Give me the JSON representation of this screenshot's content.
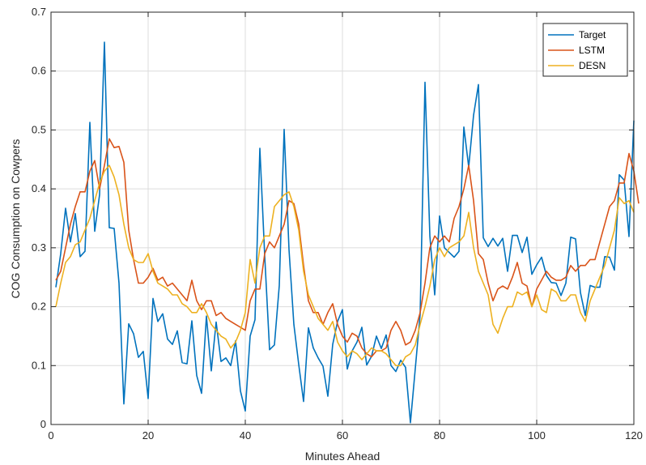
{
  "chart_data": {
    "type": "line",
    "title": "",
    "xlabel": "Minutes Ahead",
    "ylabel": "COG Consumption on Cowpers",
    "xlim": [
      0,
      120
    ],
    "ylim": [
      0,
      0.7
    ],
    "xticks": [
      0,
      20,
      40,
      60,
      80,
      100,
      120
    ],
    "yticks": [
      0,
      0.1,
      0.2,
      0.3,
      0.4,
      0.5,
      0.6,
      0.7
    ],
    "xtick_labels": [
      "0",
      "20",
      "40",
      "60",
      "80",
      "100",
      "120"
    ],
    "ytick_labels": [
      "0",
      "0.1",
      "0.2",
      "0.3",
      "0.4",
      "0.5",
      "0.6",
      "0.7"
    ],
    "grid": true,
    "legend_position": "top-right",
    "x_start": 1,
    "series": [
      {
        "name": "Target",
        "color": "#0072BD",
        "values": [
          0.233,
          0.29,
          0.367,
          0.31,
          0.358,
          0.285,
          0.294,
          0.513,
          0.328,
          0.39,
          0.649,
          0.334,
          0.333,
          0.24,
          0.035,
          0.171,
          0.154,
          0.114,
          0.124,
          0.044,
          0.214,
          0.175,
          0.188,
          0.145,
          0.136,
          0.159,
          0.105,
          0.103,
          0.176,
          0.083,
          0.053,
          0.184,
          0.091,
          0.174,
          0.107,
          0.113,
          0.1,
          0.142,
          0.057,
          0.023,
          0.15,
          0.178,
          0.469,
          0.286,
          0.127,
          0.135,
          0.236,
          0.501,
          0.297,
          0.17,
          0.102,
          0.039,
          0.164,
          0.13,
          0.113,
          0.099,
          0.048,
          0.136,
          0.175,
          0.195,
          0.094,
          0.125,
          0.14,
          0.165,
          0.101,
          0.116,
          0.15,
          0.129,
          0.152,
          0.1,
          0.09,
          0.109,
          0.097,
          0.003,
          0.095,
          0.187,
          0.581,
          0.32,
          0.22,
          0.354,
          0.3,
          0.292,
          0.284,
          0.294,
          0.505,
          0.437,
          0.525,
          0.577,
          0.317,
          0.302,
          0.316,
          0.303,
          0.316,
          0.26,
          0.321,
          0.321,
          0.292,
          0.318,
          0.255,
          0.271,
          0.284,
          0.253,
          0.241,
          0.24,
          0.219,
          0.24,
          0.318,
          0.315,
          0.224,
          0.185,
          0.236,
          0.233,
          0.233,
          0.285,
          0.284,
          0.262,
          0.424,
          0.415,
          0.319,
          0.516
        ]
      },
      {
        "name": "LSTM",
        "color": "#D95319",
        "values": [
          0.245,
          0.26,
          0.3,
          0.34,
          0.37,
          0.395,
          0.395,
          0.43,
          0.448,
          0.4,
          0.44,
          0.485,
          0.47,
          0.472,
          0.445,
          0.33,
          0.28,
          0.24,
          0.24,
          0.25,
          0.265,
          0.245,
          0.25,
          0.235,
          0.24,
          0.23,
          0.22,
          0.21,
          0.245,
          0.21,
          0.195,
          0.21,
          0.21,
          0.185,
          0.19,
          0.18,
          0.175,
          0.17,
          0.165,
          0.16,
          0.21,
          0.23,
          0.23,
          0.29,
          0.31,
          0.3,
          0.32,
          0.34,
          0.38,
          0.375,
          0.34,
          0.27,
          0.21,
          0.19,
          0.19,
          0.17,
          0.19,
          0.205,
          0.17,
          0.15,
          0.14,
          0.155,
          0.15,
          0.13,
          0.12,
          0.115,
          0.125,
          0.125,
          0.13,
          0.16,
          0.175,
          0.16,
          0.135,
          0.14,
          0.16,
          0.19,
          0.24,
          0.3,
          0.32,
          0.31,
          0.32,
          0.31,
          0.35,
          0.37,
          0.4,
          0.44,
          0.38,
          0.29,
          0.28,
          0.24,
          0.21,
          0.23,
          0.235,
          0.23,
          0.25,
          0.275,
          0.24,
          0.235,
          0.2,
          0.23,
          0.245,
          0.26,
          0.25,
          0.245,
          0.245,
          0.25,
          0.27,
          0.26,
          0.27,
          0.27,
          0.28,
          0.28,
          0.31,
          0.34,
          0.37,
          0.38,
          0.41,
          0.41,
          0.46,
          0.43,
          0.375
        ]
      },
      {
        "name": "DESN",
        "color": "#EDB120",
        "values": [
          0.2,
          0.24,
          0.275,
          0.285,
          0.305,
          0.31,
          0.33,
          0.35,
          0.38,
          0.41,
          0.43,
          0.44,
          0.42,
          0.39,
          0.34,
          0.3,
          0.28,
          0.275,
          0.275,
          0.29,
          0.26,
          0.24,
          0.235,
          0.23,
          0.22,
          0.22,
          0.205,
          0.2,
          0.19,
          0.19,
          0.205,
          0.19,
          0.17,
          0.16,
          0.15,
          0.145,
          0.13,
          0.14,
          0.16,
          0.19,
          0.28,
          0.24,
          0.3,
          0.32,
          0.32,
          0.37,
          0.38,
          0.39,
          0.395,
          0.37,
          0.33,
          0.26,
          0.22,
          0.2,
          0.18,
          0.17,
          0.16,
          0.175,
          0.14,
          0.125,
          0.115,
          0.125,
          0.12,
          0.11,
          0.12,
          0.13,
          0.125,
          0.125,
          0.12,
          0.11,
          0.1,
          0.1,
          0.115,
          0.12,
          0.135,
          0.17,
          0.2,
          0.235,
          0.28,
          0.3,
          0.285,
          0.3,
          0.305,
          0.31,
          0.32,
          0.36,
          0.3,
          0.26,
          0.24,
          0.22,
          0.17,
          0.155,
          0.18,
          0.2,
          0.2,
          0.225,
          0.22,
          0.225,
          0.2,
          0.22,
          0.195,
          0.19,
          0.23,
          0.225,
          0.21,
          0.21,
          0.22,
          0.22,
          0.19,
          0.175,
          0.21,
          0.23,
          0.25,
          0.27,
          0.3,
          0.33,
          0.385,
          0.375,
          0.38,
          0.36
        ]
      }
    ]
  }
}
